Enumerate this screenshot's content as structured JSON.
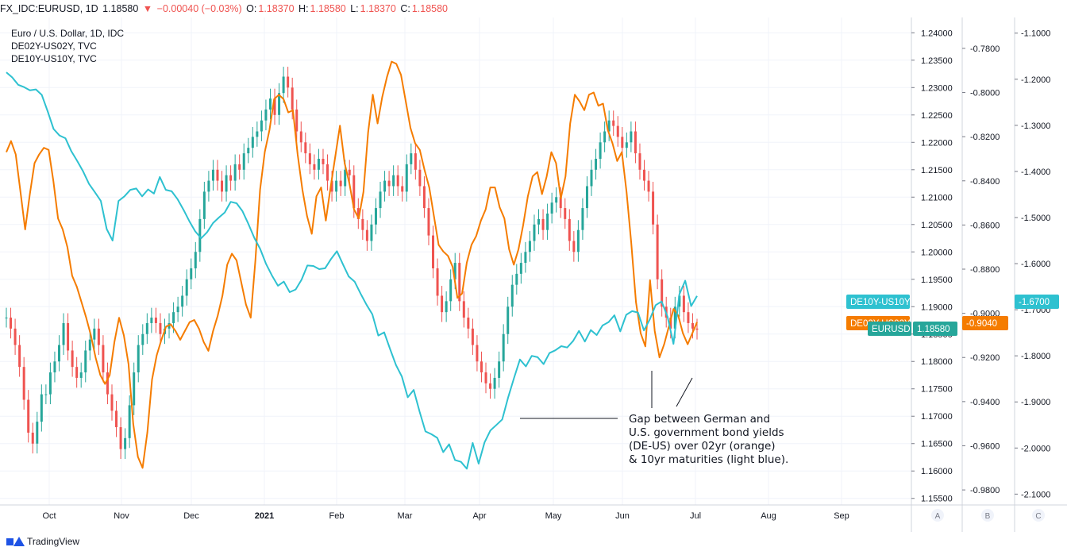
{
  "header": {
    "symbol": "FX_IDC:EURUSD, 1D",
    "price": "1.18580",
    "arrow": "▼",
    "change": "−0.00040 (−0.03%)",
    "o_label": "O:",
    "o_value": "1.18370",
    "h_label": "H:",
    "h_value": "1.18580",
    "l_label": "L:",
    "l_value": "1.18370",
    "c_label": "C:",
    "c_value": "1.18580"
  },
  "legend": {
    "line1": "Euro / U.S. Dollar, 1D, IDC",
    "line2": "DE02Y-US02Y, TVC",
    "line3": "DE10Y-US10Y, TVC"
  },
  "footer": {
    "brand": "TradingView"
  },
  "annotation": {
    "lines": [
      "Gap between German and",
      "U.S. government bond yields",
      "(DE-US) over 02yr (orange)",
      " & 10yr maturities (light blue)."
    ]
  },
  "colors": {
    "up": "#26a69a",
    "down": "#ef5350",
    "orange": "#f57c00",
    "blue": "#2ec1d0",
    "eurusd_tag": "#26a69a",
    "de02_tag": "#f57c00",
    "de10_tag": "#2ec1d0"
  },
  "chart_data": {
    "type": "line",
    "x_labels": [
      "Oct",
      "Nov",
      "Dec",
      "2021",
      "Feb",
      "Mar",
      "Apr",
      "May",
      "Jun",
      "Jul",
      "Aug",
      "Sep"
    ],
    "axes": {
      "A": {
        "label": "A",
        "ticks": [
          "1.24000",
          "1.23500",
          "1.23000",
          "1.22500",
          "1.22000",
          "1.21500",
          "1.21000",
          "1.20500",
          "1.20000",
          "1.19500",
          "1.19000",
          "1.18500",
          "1.18000",
          "1.17500",
          "1.17000",
          "1.16500",
          "1.16000",
          "1.15500"
        ],
        "range": [
          1.1538,
          1.2428
        ]
      },
      "B": {
        "label": "B",
        "ticks": [
          "-0.7800",
          "-0.8000",
          "-0.8200",
          "-0.8400",
          "-0.8600",
          "-0.8800",
          "-0.9000",
          "-0.9200",
          "-0.9400",
          "-0.9600",
          "-0.9800"
        ],
        "range": [
          -0.9868,
          -0.766
        ]
      },
      "C": {
        "label": "C",
        "ticks": [
          "-1.1000",
          "-1.2000",
          "-1.3000",
          "-1.4000",
          "-1.5000",
          "-1.6000",
          "-1.7000",
          "-1.8000",
          "-1.9000",
          "-2.0000",
          "-2.1000"
        ],
        "range": [
          -2.1235,
          -1.066
        ]
      }
    },
    "tags": {
      "eurusd": {
        "name": "EURUSD",
        "value": "1.18580"
      },
      "de02": {
        "name": "DE02Y-US02Y",
        "value": "-0.9040"
      },
      "de10": {
        "name": "DE10Y-US10Y",
        "value": "-1.6700"
      }
    },
    "series": [
      {
        "name": "EURUSD",
        "axis": "A",
        "style": "candles",
        "values": [
          1.188,
          1.186,
          1.183,
          1.179,
          1.173,
          1.167,
          1.165,
          1.169,
          1.174,
          1.174,
          1.178,
          1.18,
          1.183,
          1.187,
          1.182,
          1.179,
          1.177,
          1.178,
          1.182,
          1.184,
          1.186,
          1.183,
          1.178,
          1.174,
          1.171,
          1.168,
          1.164,
          1.166,
          1.172,
          1.178,
          1.183,
          1.185,
          1.187,
          1.188,
          1.187,
          1.185,
          1.186,
          1.187,
          1.189,
          1.19,
          1.192,
          1.195,
          1.197,
          1.2,
          1.206,
          1.211,
          1.213,
          1.215,
          1.213,
          1.211,
          1.214,
          1.213,
          1.216,
          1.215,
          1.218,
          1.219,
          1.221,
          1.222,
          1.224,
          1.226,
          1.228,
          1.225,
          1.229,
          1.232,
          1.23,
          1.226,
          1.222,
          1.22,
          1.218,
          1.216,
          1.215,
          1.217,
          1.216,
          1.213,
          1.211,
          1.213,
          1.212,
          1.215,
          1.214,
          1.208,
          1.206,
          1.204,
          1.202,
          1.205,
          1.208,
          1.211,
          1.213,
          1.212,
          1.214,
          1.212,
          1.211,
          1.216,
          1.218,
          1.215,
          1.212,
          1.208,
          1.203,
          1.197,
          1.192,
          1.189,
          1.191,
          1.195,
          1.198,
          1.191,
          1.188,
          1.186,
          1.183,
          1.18,
          1.178,
          1.176,
          1.175,
          1.177,
          1.18,
          1.185,
          1.19,
          1.194,
          1.196,
          1.198,
          1.2,
          1.202,
          1.205,
          1.206,
          1.204,
          1.207,
          1.209,
          1.21,
          1.208,
          1.206,
          1.202,
          1.2,
          1.204,
          1.208,
          1.212,
          1.215,
          1.217,
          1.22,
          1.222,
          1.224,
          1.223,
          1.221,
          1.219,
          1.22,
          1.222,
          1.218,
          1.215,
          1.213,
          1.211,
          1.205,
          1.195,
          1.19,
          1.188,
          1.186,
          1.19,
          1.192,
          1.189,
          1.187,
          1.186,
          1.1858
        ],
        "markers": [
          {
            "name": "de10-gap-tick-1",
            "x": 821
          },
          {
            "name": "de10-gap-tick-2",
            "x": 875
          }
        ]
      },
      {
        "name": "DE02Y-US02Y",
        "axis": "B",
        "values": [
          -0.827,
          -0.822,
          -0.828,
          -0.845,
          -0.862,
          -0.846,
          -0.832,
          -0.828,
          -0.825,
          -0.826,
          -0.84,
          -0.857,
          -0.862,
          -0.87,
          -0.883,
          -0.888,
          -0.895,
          -0.902,
          -0.91,
          -0.92,
          -0.928,
          -0.932,
          -0.928,
          -0.913,
          -0.902,
          -0.91,
          -0.923,
          -0.95,
          -0.965,
          -0.97,
          -0.954,
          -0.93,
          -0.919,
          -0.912,
          -0.906,
          -0.905,
          -0.908,
          -0.912,
          -0.908,
          -0.904,
          -0.903,
          -0.907,
          -0.913,
          -0.917,
          -0.908,
          -0.901,
          -0.892,
          -0.878,
          -0.873,
          -0.876,
          -0.886,
          -0.896,
          -0.902,
          -0.876,
          -0.844,
          -0.827,
          -0.817,
          -0.803,
          -0.801,
          -0.803,
          -0.809,
          -0.808,
          -0.828,
          -0.844,
          -0.856,
          -0.864,
          -0.847,
          -0.843,
          -0.858,
          -0.843,
          -0.829,
          -0.815,
          -0.832,
          -0.841,
          -0.853,
          -0.857,
          -0.845,
          -0.818,
          -0.801,
          -0.814,
          -0.802,
          -0.793,
          -0.786,
          -0.787,
          -0.792,
          -0.804,
          -0.816,
          -0.823,
          -0.826,
          -0.835,
          -0.843,
          -0.856,
          -0.869,
          -0.872,
          -0.874,
          -0.879,
          -0.893,
          -0.891,
          -0.877,
          -0.869,
          -0.865,
          -0.858,
          -0.853,
          -0.843,
          -0.843,
          -0.852,
          -0.857,
          -0.871,
          -0.878,
          -0.871,
          -0.86,
          -0.847,
          -0.838,
          -0.836,
          -0.846,
          -0.838,
          -0.827,
          -0.832,
          -0.848,
          -0.838,
          -0.814,
          -0.801,
          -0.804,
          -0.808,
          -0.801,
          -0.8,
          -0.806,
          -0.805,
          -0.817,
          -0.823,
          -0.831,
          -0.827,
          -0.845,
          -0.868,
          -0.895,
          -0.909,
          -0.915,
          -0.885,
          -0.908,
          -0.92,
          -0.914,
          -0.906,
          -0.898,
          -0.901,
          -0.909,
          -0.914,
          -0.909,
          -0.904
        ],
        "markers": []
      },
      {
        "name": "DE10Y-US10Y",
        "axis": "C",
        "values": [
          -1.185,
          -1.196,
          -1.212,
          -1.217,
          -1.224,
          -1.222,
          -1.234,
          -1.27,
          -1.308,
          -1.322,
          -1.328,
          -1.356,
          -1.377,
          -1.4,
          -1.427,
          -1.445,
          -1.464,
          -1.525,
          -1.55,
          -1.464,
          -1.454,
          -1.44,
          -1.437,
          -1.454,
          -1.439,
          -1.448,
          -1.412,
          -1.44,
          -1.443,
          -1.46,
          -1.483,
          -1.508,
          -1.53,
          -1.545,
          -1.532,
          -1.512,
          -1.5,
          -1.489,
          -1.466,
          -1.469,
          -1.486,
          -1.514,
          -1.544,
          -1.568,
          -1.601,
          -1.626,
          -1.648,
          -1.639,
          -1.662,
          -1.656,
          -1.635,
          -1.604,
          -1.605,
          -1.612,
          -1.61,
          -1.59,
          -1.573,
          -1.601,
          -1.628,
          -1.639,
          -1.665,
          -1.689,
          -1.71,
          -1.756,
          -1.749,
          -1.785,
          -1.82,
          -1.845,
          -1.89,
          -1.874,
          -1.921,
          -1.964,
          -1.97,
          -1.978,
          -2.009,
          -1.992,
          -2.026,
          -2.03,
          -2.045,
          -1.989,
          -2.034,
          -1.988,
          -1.962,
          -1.95,
          -1.938,
          -1.89,
          -1.848,
          -1.808,
          -1.823,
          -1.8,
          -1.803,
          -1.818,
          -1.794,
          -1.788,
          -1.779,
          -1.782,
          -1.768,
          -1.746,
          -1.769,
          -1.744,
          -1.755,
          -1.734,
          -1.727,
          -1.712,
          -1.747,
          -1.711,
          -1.703,
          -1.706,
          -1.745,
          -1.721,
          -1.69,
          -1.682,
          -1.715,
          -1.774,
          -1.667,
          -1.637,
          -1.692,
          -1.67
        ],
        "markers": []
      }
    ]
  }
}
